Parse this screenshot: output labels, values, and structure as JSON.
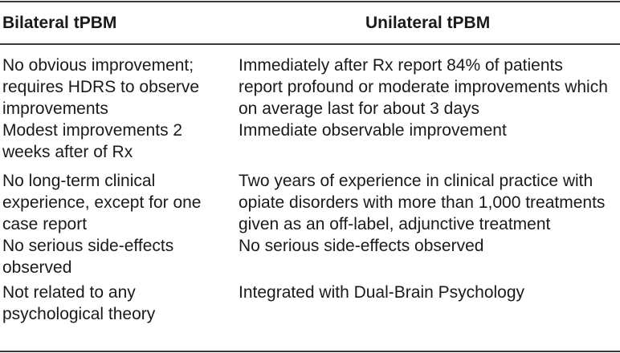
{
  "table": {
    "headers": {
      "left": "Bilateral tPBM",
      "right": "Unilateral tPBM"
    },
    "rows": [
      {
        "left": "No obvious improvement;\nrequires HDRS to observe\nimprovements",
        "right": "Immediately after Rx report 84% of patients\nreport profound or moderate improvements which\non average last for about 3 days"
      },
      {
        "left": "Modest improvements 2\nweeks after of Rx",
        "right": "Immediate observable improvement"
      },
      {
        "left": "No long-term clinical\nexperience, except for one\ncase report",
        "right": "Two years of experience in clinical practice with\nopiate disorders with more than 1,000 treatments\ngiven as an off-label, adjunctive treatment"
      },
      {
        "left": "No serious side-effects\nobserved",
        "right": "No serious side-effects observed"
      },
      {
        "left": "Not related to any\npsychological theory",
        "right": "Integrated with Dual-Brain Psychology"
      }
    ]
  }
}
